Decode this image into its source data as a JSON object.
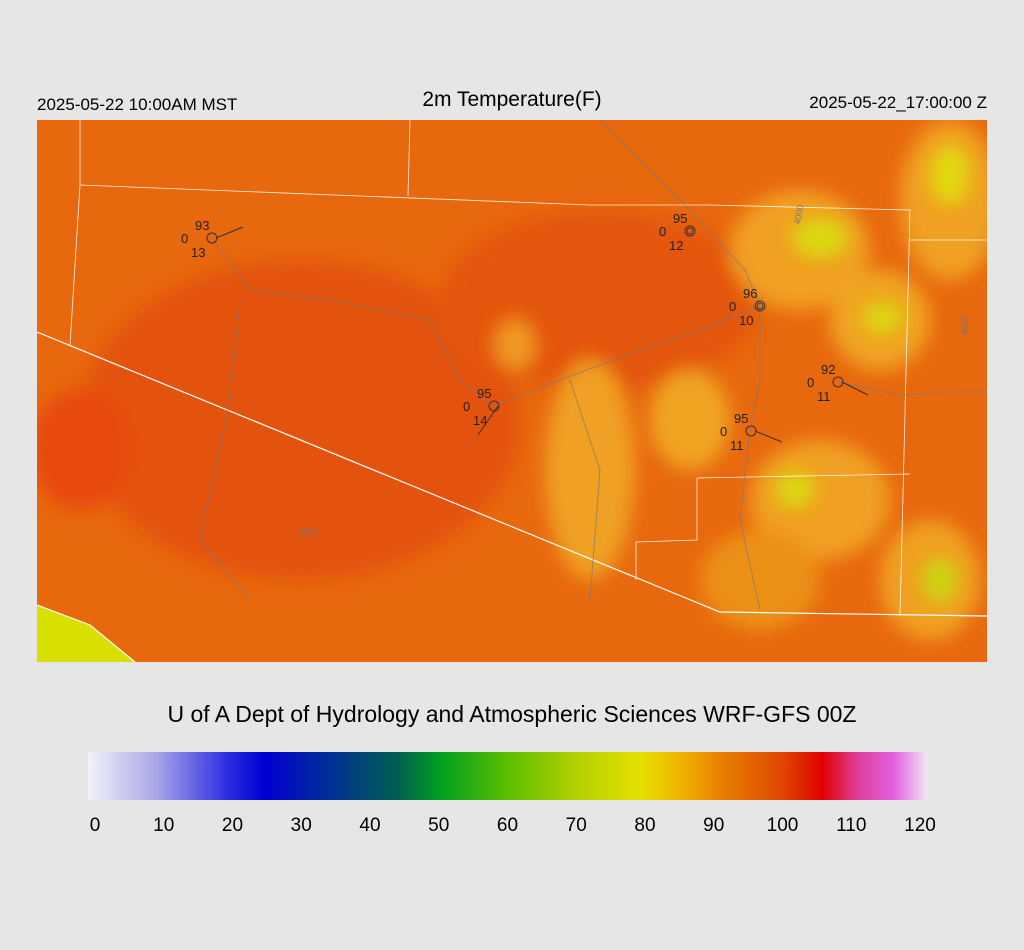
{
  "header": {
    "left": "2025-05-22 10:00AM MST",
    "title": "2m Temperature(F)",
    "right": "2025-05-22_17:00:00 Z"
  },
  "stations": [
    {
      "temp": "93",
      "mid": "0",
      "low": "13"
    },
    {
      "temp": "95",
      "mid": "0",
      "low": "12"
    },
    {
      "temp": "96",
      "mid": "0",
      "low": "10"
    },
    {
      "temp": "92",
      "mid": "0",
      "low": "11"
    },
    {
      "temp": "95",
      "mid": "0",
      "low": "14"
    },
    {
      "temp": "95",
      "mid": "0",
      "low": "11"
    }
  ],
  "contour_labels": [
    "4000",
    "4000",
    "3000"
  ],
  "credit": "U of A Dept of Hydrology and Atmospheric Sciences WRF-GFS 00Z",
  "colorbar": {
    "ticks": [
      "0",
      "10",
      "20",
      "30",
      "40",
      "50",
      "60",
      "70",
      "80",
      "90",
      "100",
      "110",
      "120"
    ]
  }
}
